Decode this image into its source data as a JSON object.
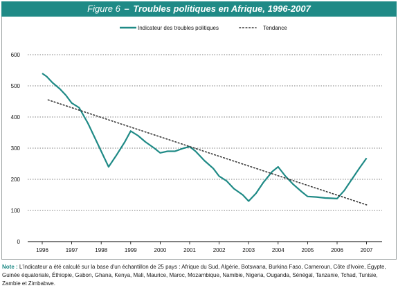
{
  "figure": {
    "label": "Figure 6",
    "title": "Troubles politiques en Afrique, 1996-2007"
  },
  "note": {
    "label": "Note :",
    "text": "L'indicateur a été calculé sur la base d'un échantillon de 25 pays : Afrique du Sud, Algérie, Botswana, Burkina Faso, Cameroun, Côte d'Ivoire, Égypte, Guinée équatoriale, Éthiopie, Gabon, Ghana, Kenya, Mali, Maurice, Maroc, Mozambique, Namibie, Nigeria, Ouganda, Sénégal, Tanzanie, Tchad, Tunisie, Zambie et Zimbabwe."
  },
  "colors": {
    "series": "#1f8a86",
    "trend": "#333333",
    "grid": "#555555"
  },
  "chart_data": {
    "type": "line",
    "title": "Troubles politiques en Afrique, 1996-2007",
    "xlabel": "",
    "ylabel": "",
    "categories": [
      "1996",
      "1997",
      "1998",
      "1999",
      "2000",
      "2001",
      "2002",
      "2003",
      "2004",
      "2005",
      "2006",
      "2007"
    ],
    "ylim": [
      0,
      600
    ],
    "yticks": [
      0,
      100,
      200,
      300,
      400,
      500,
      600
    ],
    "grid": true,
    "legend": "top-center",
    "series": [
      {
        "name": "Indicateur des troubles politiques",
        "style": "solid",
        "x": [
          1996.0,
          1996.15,
          1996.35,
          1996.6,
          1996.8,
          1997.0,
          1997.25,
          1997.55,
          1997.8,
          1998.0,
          1998.25,
          1998.5,
          1998.8,
          1999.0,
          1999.25,
          1999.5,
          1999.8,
          2000.0,
          2000.25,
          2000.5,
          2000.8,
          2001.0,
          2001.2,
          2001.5,
          2001.8,
          2002.0,
          2002.25,
          2002.5,
          2002.8,
          2003.0,
          2003.25,
          2003.5,
          2003.8,
          2004.0,
          2004.25,
          2004.5,
          2004.8,
          2005.0,
          2005.3,
          2005.6,
          2005.8,
          2006.0,
          2006.25,
          2006.5,
          2006.75,
          2007.0
        ],
        "values": [
          540,
          530,
          510,
          490,
          470,
          445,
          430,
          380,
          330,
          290,
          240,
          275,
          320,
          355,
          340,
          320,
          300,
          285,
          290,
          290,
          300,
          305,
          290,
          260,
          235,
          210,
          195,
          170,
          150,
          130,
          155,
          190,
          225,
          240,
          210,
          185,
          160,
          145,
          143,
          140,
          139,
          138,
          165,
          200,
          235,
          268
        ]
      },
      {
        "name": "Tendance",
        "style": "dotted",
        "x": [
          1996.2,
          2007.0
        ],
        "values": [
          455,
          118
        ]
      }
    ]
  }
}
